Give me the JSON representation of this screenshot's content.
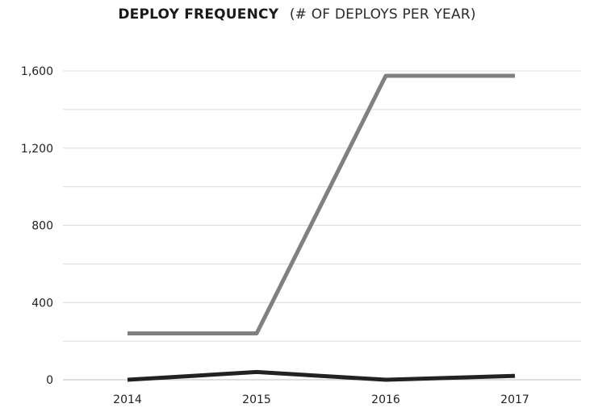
{
  "chart_data": {
    "type": "line",
    "title": "DEPLOY FREQUENCY",
    "subtitle": "(# OF DEPLOYS PER YEAR)",
    "xlabel": "",
    "ylabel": "",
    "categories": [
      "2014",
      "2015",
      "2016",
      "2017"
    ],
    "ylim": [
      0,
      1600
    ],
    "yticks": [
      0,
      400,
      800,
      1200,
      1600
    ],
    "ytick_labels": [
      "0",
      "400",
      "800",
      "1,200",
      "1,600"
    ],
    "grid": true,
    "series": [
      {
        "values": [
          240,
          240,
          1575,
          1575
        ],
        "color": "#808080"
      },
      {
        "values": [
          0,
          40,
          0,
          20
        ],
        "color": "#222222"
      }
    ]
  }
}
